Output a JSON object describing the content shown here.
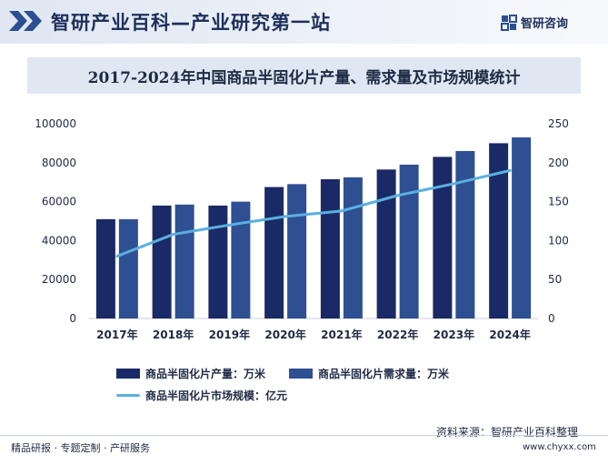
{
  "header": {
    "title": "智研产业百科—产业研究第一站",
    "logo_text": "智研咨询"
  },
  "chart_data": {
    "type": "bar",
    "title": "2017-2024年中国商品半固化片产量、需求量及市场规模统计",
    "categories": [
      "2017年",
      "2018年",
      "2019年",
      "2020年",
      "2021年",
      "2022年",
      "2023年",
      "2024年"
    ],
    "series": [
      {
        "name": "商品半固化片产量：万米",
        "type": "bar",
        "axis": "left",
        "color": "#1a2a66",
        "values": [
          51000,
          58000,
          58000,
          67500,
          71500,
          76500,
          83000,
          90000
        ]
      },
      {
        "name": "商品半固化片需求量：万米",
        "type": "bar",
        "axis": "left",
        "color": "#2f4f93",
        "values": [
          51000,
          58500,
          60000,
          69000,
          72500,
          79000,
          86000,
          93000
        ]
      },
      {
        "name": "商品半固化片市场规模：亿元",
        "type": "line",
        "axis": "right",
        "color": "#5aafe0",
        "values": [
          80,
          108,
          120,
          131,
          138,
          158,
          173,
          190
        ]
      }
    ],
    "y_left": {
      "min": 0,
      "max": 100000,
      "ticks": [
        "0",
        "20000",
        "40000",
        "60000",
        "80000",
        "100000"
      ]
    },
    "y_right": {
      "min": 0,
      "max": 250,
      "ticks": [
        "0",
        "50",
        "100",
        "150",
        "200",
        "250"
      ]
    },
    "grid": false,
    "legend_position": "bottom"
  },
  "source": "资料来源：智研产业百科整理",
  "footer": {
    "left": "精品研报 · 专题定制 · 产研服务",
    "right": "www.chyxx.com"
  }
}
